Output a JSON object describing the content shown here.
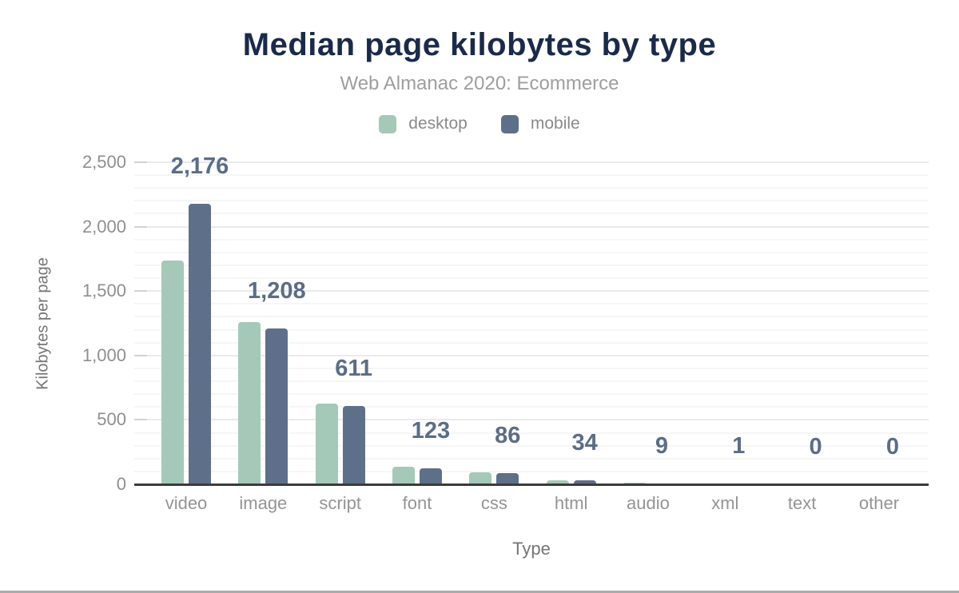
{
  "header": {
    "title": "Median page kilobytes by type",
    "subtitle": "Web Almanac 2020: Ecommerce"
  },
  "legend": [
    {
      "label": "desktop",
      "color": "#a4c9b8"
    },
    {
      "label": "mobile",
      "color": "#5e7089"
    }
  ],
  "colors": {
    "title": "#1b2a4a",
    "subtitle": "#9e9e9e",
    "desktop_bar": "#a4c9b8",
    "mobile_bar": "#5e7089",
    "data_label": "#5b6d87",
    "axis_line": "#3b3b3b",
    "tick_label": "#8f8f8f"
  },
  "chart_data": {
    "type": "bar",
    "title": "Median page kilobytes by type",
    "subtitle": "Web Almanac 2020: Ecommerce",
    "xlabel": "Type",
    "ylabel": "Kilobytes per page",
    "ylim": [
      0,
      2500
    ],
    "ytick_interval": 500,
    "minor_gridline_interval": 100,
    "ytick_labels": [
      "0",
      "500",
      "1,000",
      "1,500",
      "2,000",
      "2,500"
    ],
    "grid": true,
    "legend_position": "top",
    "categories": [
      "video",
      "image",
      "script",
      "font",
      "css",
      "html",
      "audio",
      "xml",
      "text",
      "other"
    ],
    "series": [
      {
        "name": "desktop",
        "color": "#a4c9b8",
        "values": [
          1740,
          1260,
          625,
          135,
          90,
          30,
          14,
          1,
          0,
          0
        ]
      },
      {
        "name": "mobile",
        "color": "#5e7089",
        "values": [
          2176,
          1208,
          611,
          123,
          86,
          34,
          9,
          1,
          0,
          0
        ]
      }
    ],
    "data_labels": {
      "series": "mobile",
      "values": [
        "2,176",
        "1,208",
        "611",
        "123",
        "86",
        "34",
        "9",
        "1",
        "0",
        "0"
      ]
    }
  }
}
